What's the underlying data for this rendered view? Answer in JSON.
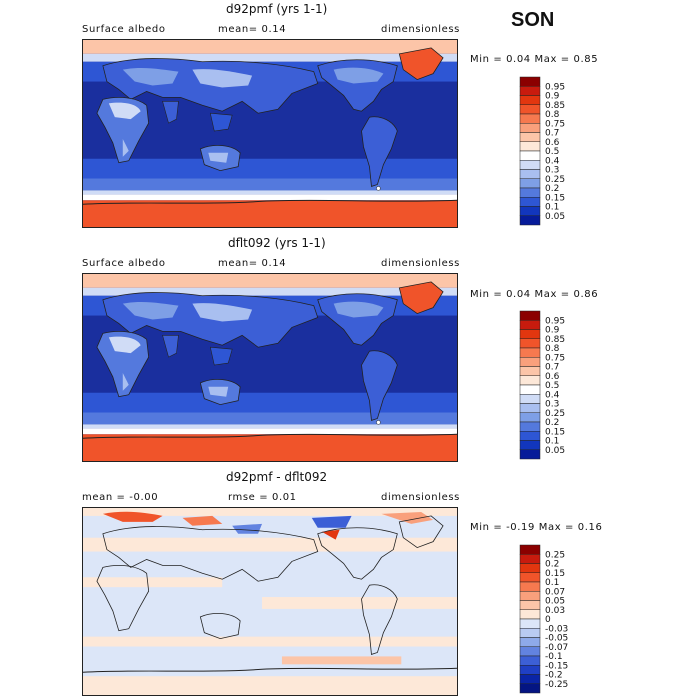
{
  "season": "SON",
  "panels": [
    {
      "title": "d92pmf (yrs 1-1)",
      "left_label": "Surface albedo",
      "center_label": "mean=   0.14",
      "right_label": "dimensionless",
      "minmax_label": "Min =    0.04  Max =    0.85",
      "min": 0.04,
      "max": 0.85
    },
    {
      "title": "dflt092 (yrs 1-1)",
      "left_label": "Surface albedo",
      "center_label": "mean=   0.14",
      "right_label": "dimensionless",
      "minmax_label": "Min =    0.04  Max =    0.86",
      "min": 0.04,
      "max": 0.86
    },
    {
      "title": "d92pmf - dflt092",
      "left_label": "mean =   -0.00",
      "center_label": "rmse =   0.01",
      "right_label": "dimensionless",
      "minmax_label": "Min =  -0.19  Max =    0.16",
      "min": -0.19,
      "max": 0.16
    }
  ],
  "colorbars": [
    {
      "labels": [
        "0.95",
        "0.9",
        "0.85",
        "0.8",
        "0.75",
        "0.7",
        "0.6",
        "0.5",
        "0.4",
        "0.3",
        "0.25",
        "0.2",
        "0.15",
        "0.1",
        "0.05"
      ],
      "colors": [
        "#8b0000",
        "#c81b0e",
        "#e2360f",
        "#f0542a",
        "#f6794f",
        "#f9a07c",
        "#fcc5a8",
        "#fde8d8",
        "#ffffff",
        "#d0dcf6",
        "#a9bff0",
        "#7e9fe6",
        "#5479dd",
        "#2e56d4",
        "#1236bd",
        "#061b99"
      ]
    },
    {
      "labels": [
        "0.95",
        "0.9",
        "0.85",
        "0.8",
        "0.75",
        "0.7",
        "0.6",
        "0.5",
        "0.4",
        "0.3",
        "0.25",
        "0.2",
        "0.15",
        "0.1",
        "0.05"
      ],
      "colors": [
        "#8b0000",
        "#c81b0e",
        "#e2360f",
        "#f0542a",
        "#f6794f",
        "#f9a07c",
        "#fcc5a8",
        "#fde8d8",
        "#ffffff",
        "#d0dcf6",
        "#a9bff0",
        "#7e9fe6",
        "#5479dd",
        "#2e56d4",
        "#1236bd",
        "#061b99"
      ]
    },
    {
      "labels": [
        "0.25",
        "0.2",
        "0.15",
        "0.1",
        "0.07",
        "0.05",
        "0.03",
        "0",
        "-0.03",
        "-0.05",
        "-0.07",
        "-0.1",
        "-0.15",
        "-0.2",
        "-0.25"
      ],
      "colors": [
        "#8b0000",
        "#c81b0e",
        "#e2360f",
        "#f0542a",
        "#f6794f",
        "#f9a07c",
        "#fcc5a8",
        "#fde8d8",
        "#dce6f8",
        "#b9cbf2",
        "#8eaaea",
        "#6283e0",
        "#3c5fd6",
        "#1f3fc4",
        "#0a24a6",
        "#041582"
      ]
    }
  ],
  "chart_data": [
    {
      "type": "heatmap",
      "title": "d92pmf (yrs 1-1)",
      "variable": "Surface albedo",
      "units": "dimensionless",
      "mean": 0.14,
      "min": 0.04,
      "max": 0.85,
      "levels": [
        0.05,
        0.1,
        0.15,
        0.2,
        0.25,
        0.3,
        0.4,
        0.5,
        0.6,
        0.7,
        0.75,
        0.8,
        0.85,
        0.9,
        0.95
      ]
    },
    {
      "type": "heatmap",
      "title": "dflt092 (yrs 1-1)",
      "variable": "Surface albedo",
      "units": "dimensionless",
      "mean": 0.14,
      "min": 0.04,
      "max": 0.86,
      "levels": [
        0.05,
        0.1,
        0.15,
        0.2,
        0.25,
        0.3,
        0.4,
        0.5,
        0.6,
        0.7,
        0.75,
        0.8,
        0.85,
        0.9,
        0.95
      ]
    },
    {
      "type": "heatmap",
      "title": "d92pmf - dflt092",
      "units": "dimensionless",
      "mean": -0.0,
      "rmse": 0.01,
      "min": -0.19,
      "max": 0.16,
      "levels": [
        -0.25,
        -0.2,
        -0.15,
        -0.1,
        -0.07,
        -0.05,
        -0.03,
        0,
        0.03,
        0.05,
        0.07,
        0.1,
        0.15,
        0.2,
        0.25
      ]
    }
  ]
}
